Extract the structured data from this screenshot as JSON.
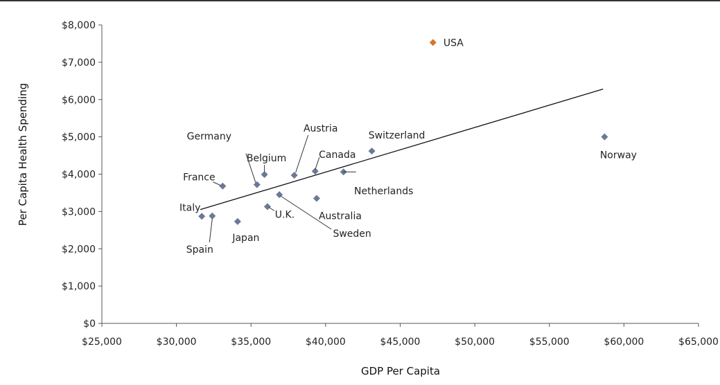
{
  "chart_data": {
    "type": "scatter",
    "xlabel": "GDP Per Capita",
    "ylabel": "Per Capita Health Spending",
    "xlim": [
      25000,
      65000
    ],
    "ylim": [
      0,
      8000
    ],
    "x_ticks": [
      25000,
      30000,
      35000,
      40000,
      45000,
      50000,
      55000,
      60000,
      65000
    ],
    "x_tick_labels": [
      "$25,000",
      "$30,000",
      "$35,000",
      "$40,000",
      "$45,000",
      "$50,000",
      "$55,000",
      "$60,000",
      "$65,000"
    ],
    "y_ticks": [
      0,
      1000,
      2000,
      3000,
      4000,
      5000,
      6000,
      7000,
      8000
    ],
    "y_tick_labels": [
      "$0",
      "$1,000",
      "$2,000",
      "$3,000",
      "$4,000",
      "$5,000",
      "$6,000",
      "$7,000",
      "$8,000"
    ],
    "grid": false,
    "points": [
      {
        "label": "USA",
        "x": 47200,
        "y": 7530,
        "highlight": true
      },
      {
        "label": "Norway",
        "x": 58700,
        "y": 5000
      },
      {
        "label": "Switzerland",
        "x": 43100,
        "y": 4620
      },
      {
        "label": "Netherlands",
        "x": 41200,
        "y": 4060
      },
      {
        "label": "Canada",
        "x": 39300,
        "y": 4080
      },
      {
        "label": "Austria",
        "x": 37900,
        "y": 3970
      },
      {
        "label": "Belgium",
        "x": 35900,
        "y": 3990
      },
      {
        "label": "Germany",
        "x": 35400,
        "y": 3720
      },
      {
        "label": "France",
        "x": 33100,
        "y": 3680
      },
      {
        "label": "Sweden",
        "x": 36900,
        "y": 3450
      },
      {
        "label": "Australia",
        "x": 39400,
        "y": 3350
      },
      {
        "label": "U.K.",
        "x": 36100,
        "y": 3130
      },
      {
        "label": "Italy",
        "x": 31700,
        "y": 2870
      },
      {
        "label": "Spain",
        "x": 32400,
        "y": 2880
      },
      {
        "label": "Japan",
        "x": 34100,
        "y": 2730
      }
    ],
    "trendline": {
      "x": [
        31600,
        58600
      ],
      "y": [
        3050,
        6280
      ]
    },
    "colors": {
      "default_marker": "#6b7896",
      "highlight_marker": "#d2772e",
      "trendline": "#111111",
      "axis": "#555555"
    }
  }
}
